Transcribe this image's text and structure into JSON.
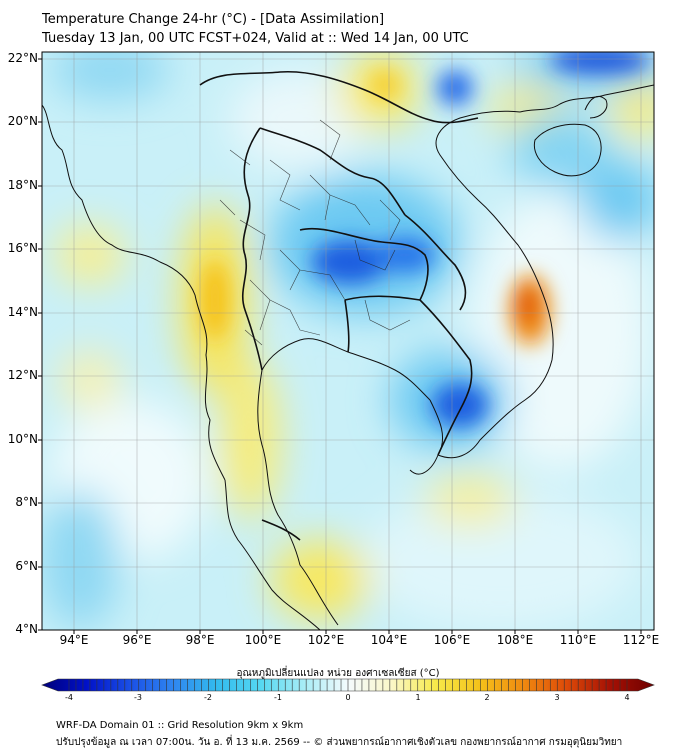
{
  "title_line1": "Temperature Change 24-hr (°C) - [Data Assimilation]",
  "title_line2": "Tuesday 13 Jan, 00 UTC FCST+024, Valid at :: Wed 14 Jan, 00 UTC",
  "lat_labels": [
    "22°N",
    "20°N",
    "18°N",
    "16°N",
    "14°N",
    "12°N",
    "10°N",
    "8°N",
    "6°N",
    "4°N"
  ],
  "lon_labels": [
    "94°E",
    "96°E",
    "98°E",
    "100°E",
    "102°E",
    "104°E",
    "106°E",
    "108°E",
    "110°E",
    "112°E"
  ],
  "colorbar": {
    "title": "อุณหภูมิเปลี่ยนแปลง หน่วย องศาเซลเซียส (°C)",
    "ticks": [
      "-4",
      "-3",
      "-2",
      "-1",
      "0",
      "1",
      "2",
      "3",
      "4"
    ],
    "min": -4,
    "max": 4,
    "colors": [
      "#00007a",
      "#0010c8",
      "#1a4fe6",
      "#2f86f0",
      "#33bbee",
      "#55d8f2",
      "#a8ecf6",
      "#f4fbfd",
      "#fbf7c8",
      "#f7ea4a",
      "#f5c21a",
      "#f08a10",
      "#dd4a08",
      "#a51004",
      "#6e0000"
    ]
  },
  "footer_line1": "WRF-DA Domain 01 :: Grid Resolution 9km x 9km",
  "footer_line2": "ปรับปรุงข้อมูล ณ เวลา 07:00น. วัน อ. ที่ 13 ม.ค. 2569 -- © ส่วนพยากรณ์อากาศเชิงตัวเลข กองพยากรณ์อากาศ กรมอุตุนิยมวิทยา",
  "map_data": {
    "field": "24-hr temperature change (°C)",
    "lat_range": [
      4,
      22.2
    ],
    "lon_range": [
      93,
      112.7
    ],
    "anomalies": [
      {
        "name": "cold-core-thailand-northeast",
        "lat": 15.5,
        "lon": 102.6,
        "value": -3.0
      },
      {
        "name": "cold-core-cambodia-south",
        "lat": 11.0,
        "lon": 106.2,
        "value": -2.8
      },
      {
        "name": "cold-north-vietnam",
        "lat": 21.0,
        "lon": 106.0,
        "value": -2.0
      },
      {
        "name": "cold-top-right",
        "lat": 22.0,
        "lon": 110.3,
        "value": -2.2
      },
      {
        "name": "warm-central-vietnam-coast",
        "lat": 14.3,
        "lon": 108.5,
        "value": 2.4
      },
      {
        "name": "warm-myanmar-tanintharyi",
        "lat": 14.0,
        "lon": 98.5,
        "value": 1.2
      },
      {
        "name": "warm-laos-north",
        "lat": 20.5,
        "lon": 103.2,
        "value": 1.1
      }
    ]
  }
}
